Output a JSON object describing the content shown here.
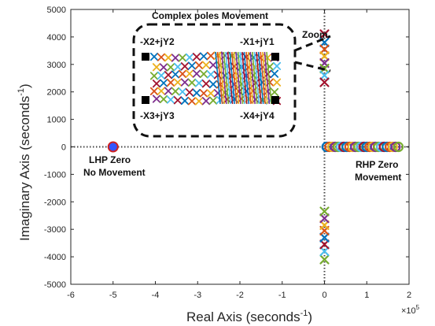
{
  "chart_data": {
    "type": "scatter",
    "title": "",
    "xlabel": "Real Axis (seconds",
    "xlabel_sup": "-1",
    "xlabel_close": ")",
    "ylabel": "Imaginary Axis (seconds",
    "ylabel_sup": "-1",
    "ylabel_close": ")",
    "x_exponent_label": "×10",
    "x_exponent_sup": "5",
    "xlim": [
      -6,
      2
    ],
    "ylim": [
      -5000,
      5000
    ],
    "x_ticks": [
      -6,
      -5,
      -4,
      -3,
      -2,
      -1,
      0,
      1,
      2
    ],
    "x_tick_labels": [
      "-6",
      "-5",
      "-4",
      "-3",
      "-2",
      "-1",
      "0",
      "1",
      "2"
    ],
    "y_ticks": [
      -5000,
      -4000,
      -3000,
      -2000,
      -1000,
      0,
      1000,
      2000,
      3000,
      4000,
      5000
    ],
    "y_tick_labels": [
      "-5000",
      "-4000",
      "-3000",
      "-2000",
      "-1000",
      "0",
      "1000",
      "2000",
      "3000",
      "4000",
      "5000"
    ],
    "grid": false,
    "series_colors": [
      "#0072BD",
      "#D95319",
      "#EDB120",
      "#7E2F8E",
      "#77AC30",
      "#4DBEEE",
      "#A2142F"
    ],
    "lhp_zero": {
      "x": -5,
      "y": 0,
      "fill": "#3355ff",
      "edge": "#cc2222"
    },
    "rhp_zeros": {
      "x_start": 0.05,
      "x_end": 1.75,
      "count": 26,
      "y": 0
    },
    "upper_poles": {
      "x": 0,
      "y_values": [
        4100,
        3800,
        3550,
        3300,
        3050,
        2850,
        2600,
        2350
      ]
    },
    "lower_poles": {
      "x": 0,
      "y_values": [
        -4100,
        -3800,
        -3550,
        -3300,
        -3050,
        -2850,
        -2600,
        -2350
      ]
    },
    "inset": {
      "title": "Complex poles Movement",
      "labels": {
        "tl": "-X2+jY2",
        "tr": "-X1+jY1",
        "bl": "-X3+jY3",
        "br": "-X4+jY4"
      },
      "zoom_label": "Zoom"
    },
    "annotations": {
      "lhp_line1": "LHP Zero",
      "lhp_line2": "No Movement",
      "rhp_line1": "RHP Zero",
      "rhp_line2": "Movement"
    }
  }
}
